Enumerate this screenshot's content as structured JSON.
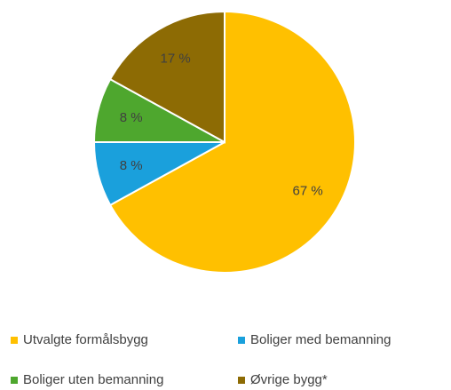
{
  "chart_data": {
    "type": "pie",
    "categories": [
      "Utvalgte formålsbygg",
      "Boliger med bemanning",
      "Boliger uten bemanning",
      "Øvrige bygg*"
    ],
    "values": [
      67,
      8,
      8,
      17
    ],
    "value_labels": [
      "67 %",
      "8 %",
      "8 %",
      "17 %"
    ],
    "colors": [
      "#ffc000",
      "#1aa0dc",
      "#4ea72e",
      "#8d6b04"
    ],
    "legend": "bottom"
  }
}
